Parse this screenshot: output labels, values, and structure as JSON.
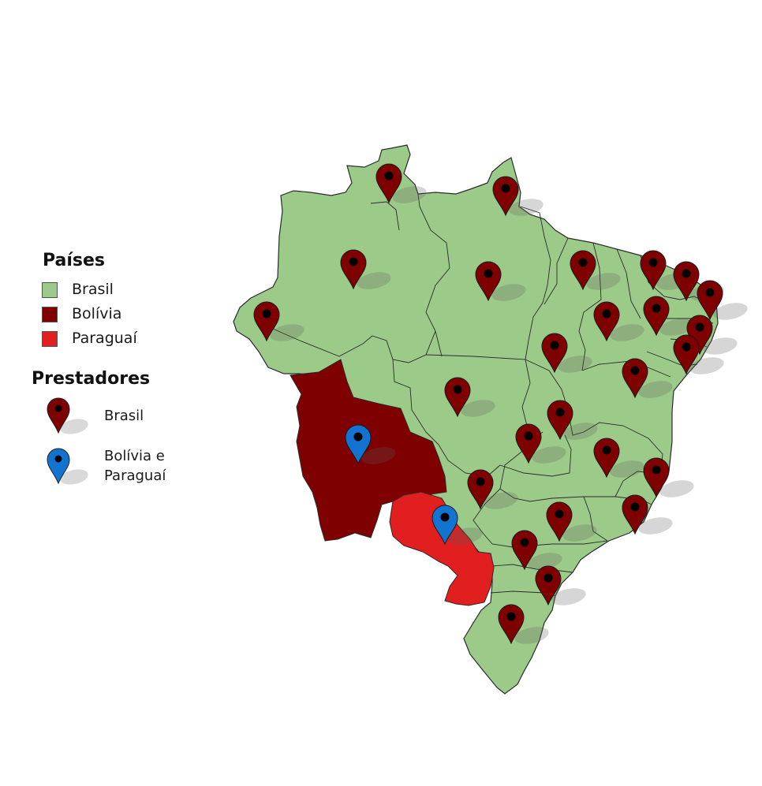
{
  "legend": {
    "paises_title": "Países",
    "paises": [
      {
        "label": "Brasil",
        "color": "#9ccb89"
      },
      {
        "label": "Bolívia",
        "color": "#7f0000"
      },
      {
        "label": "Paraguaí",
        "color": "#e11f1f"
      }
    ],
    "prestadores_title": "Prestadores",
    "prestadores": [
      {
        "label": "Brasil",
        "color": "#7f0000"
      },
      {
        "label_line1": "Bolívia e",
        "label_line2": "Paraguaí",
        "color": "#1273d0"
      }
    ]
  },
  "colors": {
    "brasil": "#9ccb89",
    "bolivia": "#7f0000",
    "paraguai": "#e11f1f",
    "pin_brasil": "#7f0000",
    "pin_bolivia_paraguai": "#1273d0",
    "border": "#2b2b2b"
  },
  "markers": {
    "brasil_count": 27,
    "bolivia_paraguai_count": 2
  }
}
